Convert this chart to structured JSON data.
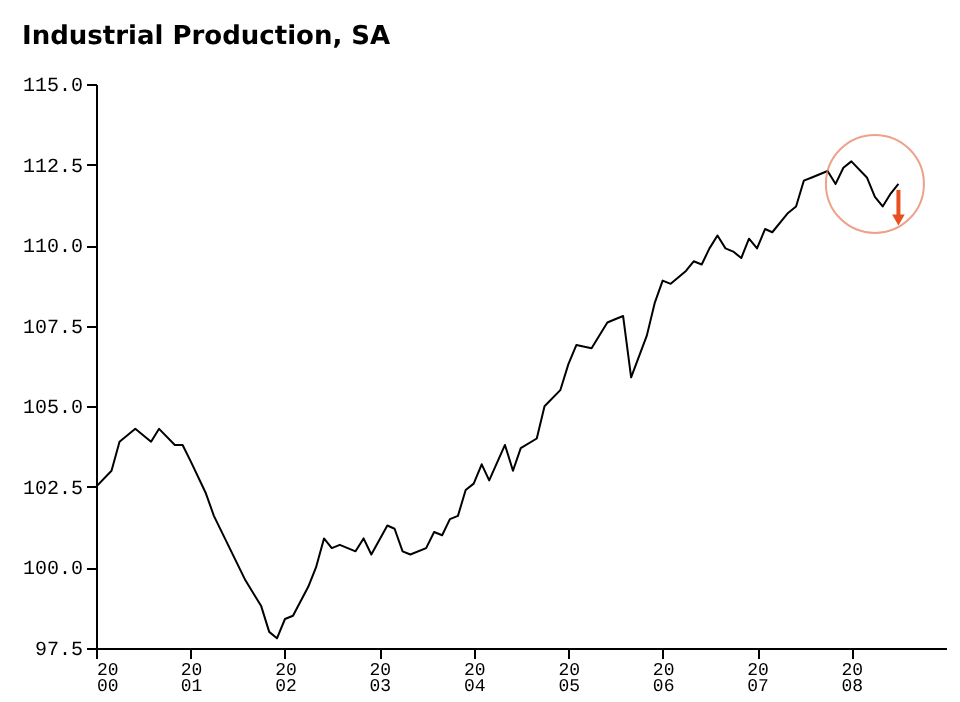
{
  "chart_data": {
    "type": "line",
    "title": "Industrial Production, SA",
    "x": [
      "2000-01",
      "2000-03",
      "2000-04",
      "2000-06",
      "2000-08",
      "2000-09",
      "2000-11",
      "2000-12",
      "2001-01",
      "2001-03",
      "2001-04",
      "2001-06",
      "2001-08",
      "2001-10",
      "2001-11",
      "2001-12",
      "2002-01",
      "2002-02",
      "2002-04",
      "2002-05",
      "2002-06",
      "2002-07",
      "2002-08",
      "2002-10",
      "2002-11",
      "2002-12",
      "2003-02",
      "2003-03",
      "2003-04",
      "2003-05",
      "2003-07",
      "2003-08",
      "2003-09",
      "2003-10",
      "2003-11",
      "2003-12",
      "2004-01",
      "2004-02",
      "2004-03",
      "2004-05",
      "2004-06",
      "2004-07",
      "2004-09",
      "2004-10",
      "2004-12",
      "2005-01",
      "2005-02",
      "2005-04",
      "2005-06",
      "2005-07",
      "2005-08",
      "2005-09",
      "2005-11",
      "2005-12",
      "2006-01",
      "2006-02",
      "2006-04",
      "2006-05",
      "2006-06",
      "2006-07",
      "2006-08",
      "2006-09",
      "2006-10",
      "2006-11",
      "2006-12",
      "2007-01",
      "2007-02",
      "2007-03",
      "2007-05",
      "2007-06",
      "2007-07",
      "2007-08",
      "2007-10",
      "2007-11",
      "2007-12",
      "2008-01",
      "2008-03",
      "2008-04",
      "2008-05",
      "2008-06",
      "2008-07"
    ],
    "series": [
      {
        "color": "#000000",
        "values": [
          102.5,
          103.0,
          103.9,
          104.3,
          103.9,
          104.3,
          103.8,
          103.8,
          103.3,
          102.3,
          101.6,
          100.6,
          99.6,
          98.8,
          98.0,
          97.8,
          98.4,
          98.5,
          99.4,
          100.0,
          100.9,
          100.6,
          100.7,
          100.5,
          100.9,
          100.4,
          101.3,
          101.2,
          100.5,
          100.4,
          100.6,
          101.1,
          101.0,
          101.5,
          101.6,
          102.4,
          102.6,
          103.2,
          102.7,
          103.8,
          103.0,
          103.7,
          104.0,
          105.0,
          105.5,
          106.3,
          106.9,
          106.8,
          107.6,
          107.7,
          107.8,
          105.9,
          107.2,
          108.2,
          108.9,
          108.8,
          109.2,
          109.5,
          109.4,
          109.9,
          110.3,
          109.9,
          109.8,
          109.6,
          110.2,
          109.9,
          110.5,
          110.4,
          111.0,
          111.2,
          112.0,
          112.1,
          112.3,
          111.9,
          112.4,
          112.6,
          112.1,
          111.5,
          111.2,
          111.6,
          111.9
        ]
      }
    ],
    "xlim": [
      "2000-01",
      "2009-01"
    ],
    "xticks": [
      {
        "value": "2000-01",
        "label": "20\n00"
      },
      {
        "value": "2001-01",
        "label": "20\n01"
      },
      {
        "value": "2002-01",
        "label": "20\n02"
      },
      {
        "value": "2003-01",
        "label": "20\n03"
      },
      {
        "value": "2004-01",
        "label": "20\n04"
      },
      {
        "value": "2005-01",
        "label": "20\n05"
      },
      {
        "value": "2006-01",
        "label": "20\n06"
      },
      {
        "value": "2007-01",
        "label": "20\n07"
      },
      {
        "value": "2008-01",
        "label": "20\n08"
      }
    ],
    "ylim": [
      97.5,
      115.0
    ],
    "yticks": [
      {
        "value": 97.5,
        "label": "97.5"
      },
      {
        "value": 100,
        "label": "100.0"
      },
      {
        "value": 102.5,
        "label": "102.5"
      },
      {
        "value": 105,
        "label": "105.0"
      },
      {
        "value": 107.5,
        "label": "107.5"
      },
      {
        "value": 110,
        "label": "110.0"
      },
      {
        "value": 112.5,
        "label": "112.5"
      },
      {
        "value": 115,
        "label": "115.0"
      }
    ],
    "grid": false,
    "marker": "none",
    "line_style": "solid"
  }
}
